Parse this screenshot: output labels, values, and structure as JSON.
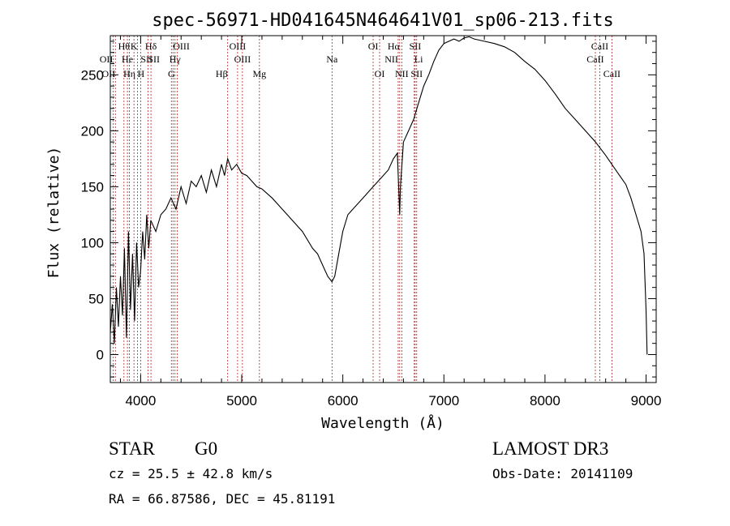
{
  "chart_data": {
    "type": "line",
    "title": "spec-56971-HD041645N464641V01_sp06-213.fits",
    "xlabel": "Wavelength (Å)",
    "ylabel": "Flux (relative)",
    "xlim": [
      3700,
      9100
    ],
    "ylim": [
      -25,
      285
    ],
    "xticks": [
      4000,
      5000,
      6000,
      7000,
      8000,
      9000
    ],
    "yticks": [
      0,
      50,
      100,
      150,
      200,
      250
    ],
    "series": [
      {
        "name": "flux",
        "x": [
          3700,
          3720,
          3740,
          3760,
          3780,
          3800,
          3820,
          3840,
          3860,
          3880,
          3900,
          3920,
          3940,
          3960,
          3980,
          4000,
          4020,
          4040,
          4060,
          4080,
          4100,
          4150,
          4200,
          4250,
          4300,
          4350,
          4400,
          4450,
          4500,
          4550,
          4600,
          4650,
          4700,
          4750,
          4800,
          4830,
          4861,
          4900,
          4950,
          5000,
          5050,
          5100,
          5150,
          5200,
          5300,
          5400,
          5500,
          5600,
          5700,
          5750,
          5800,
          5850,
          5893,
          5920,
          5950,
          6000,
          6050,
          6100,
          6200,
          6300,
          6400,
          6450,
          6500,
          6540,
          6563,
          6570,
          6600,
          6650,
          6700,
          6750,
          6800,
          6850,
          6900,
          6950,
          7000,
          7050,
          7100,
          7150,
          7200,
          7250,
          7300,
          7400,
          7500,
          7600,
          7700,
          7800,
          7900,
          8000,
          8100,
          8200,
          8300,
          8400,
          8500,
          8600,
          8700,
          8800,
          8850,
          8900,
          8950,
          8980,
          9000,
          9010
        ],
        "values": [
          20,
          45,
          10,
          60,
          25,
          70,
          35,
          95,
          15,
          110,
          40,
          90,
          30,
          100,
          60,
          75,
          110,
          85,
          125,
          95,
          120,
          110,
          125,
          130,
          140,
          130,
          150,
          135,
          155,
          150,
          160,
          145,
          165,
          150,
          170,
          160,
          175,
          165,
          170,
          162,
          160,
          155,
          150,
          148,
          140,
          130,
          120,
          110,
          95,
          90,
          80,
          70,
          65,
          70,
          85,
          110,
          125,
          130,
          140,
          150,
          160,
          165,
          175,
          180,
          125,
          150,
          190,
          200,
          210,
          225,
          240,
          250,
          262,
          272,
          278,
          280,
          282,
          280,
          283,
          284,
          282,
          280,
          278,
          275,
          270,
          262,
          255,
          245,
          233,
          220,
          210,
          200,
          190,
          178,
          165,
          152,
          140,
          125,
          110,
          90,
          40,
          0
        ]
      }
    ],
    "lines": [
      {
        "wave": 3727,
        "label": "OII",
        "row": 2,
        "anchor": "end"
      },
      {
        "wave": 3750,
        "label": "OII",
        "row": 3,
        "anchor": "end"
      },
      {
        "wave": 3835,
        "label": "Hθ",
        "row": 1,
        "anchor": "middle"
      },
      {
        "wave": 3869,
        "label": "He",
        "row": 2,
        "anchor": "middle"
      },
      {
        "wave": 3889,
        "label": "Hη",
        "row": 3,
        "anchor": "middle"
      },
      {
        "wave": 3934,
        "label": "K",
        "row": 1,
        "anchor": "middle"
      },
      {
        "wave": 3969,
        "label": "H",
        "row": 3,
        "anchor": "start"
      },
      {
        "wave": 4000,
        "label": "SII",
        "row": 2,
        "anchor": "start"
      },
      {
        "wave": 4102,
        "label": "Hδ",
        "row": 1,
        "anchor": "middle"
      },
      {
        "wave": 4072,
        "label": "SII",
        "row": 2,
        "anchor": "start"
      },
      {
        "wave": 4304,
        "label": "G",
        "row": 3,
        "anchor": "middle"
      },
      {
        "wave": 4320,
        "label": "OIII",
        "row": 1,
        "anchor": "start"
      },
      {
        "wave": 4340,
        "label": "Hγ",
        "row": 2,
        "anchor": "middle"
      },
      {
        "wave": 4363,
        "label": "",
        "row": 0,
        "anchor": "middle"
      },
      {
        "wave": 4861,
        "label": "Hβ",
        "row": 3,
        "anchor": "end"
      },
      {
        "wave": 4959,
        "label": "OIII",
        "row": 1,
        "anchor": "middle"
      },
      {
        "wave": 5007,
        "label": "OIII",
        "row": 2,
        "anchor": "middle"
      },
      {
        "wave": 5175,
        "label": "Mg",
        "row": 3,
        "anchor": "middle"
      },
      {
        "wave": 5893,
        "label": "Na",
        "row": 2,
        "anchor": "middle"
      },
      {
        "wave": 6300,
        "label": "OI",
        "row": 1,
        "anchor": "middle"
      },
      {
        "wave": 6364,
        "label": "OI",
        "row": 3,
        "anchor": "middle"
      },
      {
        "wave": 6548,
        "label": "NII",
        "row": 2,
        "anchor": "end"
      },
      {
        "wave": 6563,
        "label": "Hα",
        "row": 1,
        "anchor": "end"
      },
      {
        "wave": 6583,
        "label": "NII",
        "row": 3,
        "anchor": "middle"
      },
      {
        "wave": 6707,
        "label": "Li",
        "row": 2,
        "anchor": "start"
      },
      {
        "wave": 6716,
        "label": "SII",
        "row": 1,
        "anchor": "middle"
      },
      {
        "wave": 6731,
        "label": "SII",
        "row": 3,
        "anchor": "middle"
      },
      {
        "wave": 8498,
        "label": "CaII",
        "row": 2,
        "anchor": "middle"
      },
      {
        "wave": 8542,
        "label": "CaII",
        "row": 1,
        "anchor": "middle"
      },
      {
        "wave": 8662,
        "label": "CaII",
        "row": 3,
        "anchor": "middle"
      }
    ]
  },
  "info": {
    "class_label": "STAR",
    "subclass_label": "G0",
    "survey": "LAMOST DR3",
    "cz": "cz = 25.5 ± 42.8 km/s",
    "obs_date": "Obs-Date: 20141109",
    "radec": "RA =  66.87586, DEC =  45.81191"
  }
}
